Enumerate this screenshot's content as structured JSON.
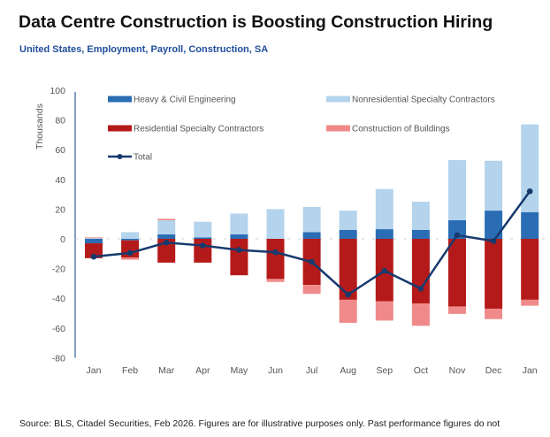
{
  "title": "Data Centre Construction is Boosting Construction Hiring",
  "subtitle": "United States, Employment, Payroll, Construction, SA",
  "source": "Source: BLS, Citadel Securities, Feb 2026. Figures are for illustrative purposes only. Past performance figures do not",
  "colors": {
    "heavy": "#2a6db5",
    "nonres": "#b4d3ec",
    "residential": "#b51a1a",
    "buildings": "#f08a8a",
    "total": "#163a6e"
  },
  "chart_data": {
    "type": "bar",
    "stacked": true,
    "title": "Data Centre Construction is Boosting Construction Hiring",
    "ylabel": "Thousands",
    "ylim": [
      -80,
      100
    ],
    "yticks": [
      100,
      80,
      60,
      40,
      20,
      0,
      -20,
      -40,
      -60,
      -80
    ],
    "categories": [
      "Jan",
      "Feb",
      "Mar",
      "Apr",
      "May",
      "Jun",
      "Jul",
      "Aug",
      "Sep",
      "Oct",
      "Nov",
      "Dec",
      "Jan"
    ],
    "legend_position": "top",
    "series": [
      {
        "key": "heavy",
        "name": "Heavy & Civil Engineering",
        "values": [
          -3,
          -1,
          3,
          1,
          3,
          0,
          4.5,
          6,
          6.5,
          6,
          12.5,
          19,
          18
        ]
      },
      {
        "key": "residential",
        "name": "Residential Specialty Contractors",
        "values": [
          -10,
          -11.5,
          -16,
          -16,
          -24.5,
          -27,
          -31,
          -41,
          -42,
          -43.5,
          -45.5,
          -47,
          -41
        ]
      },
      {
        "key": "nonres",
        "name": "Nonresidential Specialty Contractors",
        "values": [
          0.5,
          4.5,
          9.5,
          10.5,
          14,
          20,
          17,
          13,
          27,
          19,
          40.5,
          33.5,
          59
        ]
      },
      {
        "key": "buildings",
        "name": "Construction of Buildings",
        "values": [
          0.5,
          -1.5,
          1,
          0,
          0,
          -2,
          -6,
          -15.5,
          -13,
          -15,
          -5,
          -7,
          -4
        ]
      },
      {
        "key": "total",
        "name": "Total",
        "type": "line",
        "values": [
          -12,
          -9.5,
          -2.5,
          -4.5,
          -7.5,
          -9,
          -15.5,
          -37.5,
          -21.5,
          -33.5,
          2.5,
          -1.5,
          32
        ]
      }
    ]
  }
}
